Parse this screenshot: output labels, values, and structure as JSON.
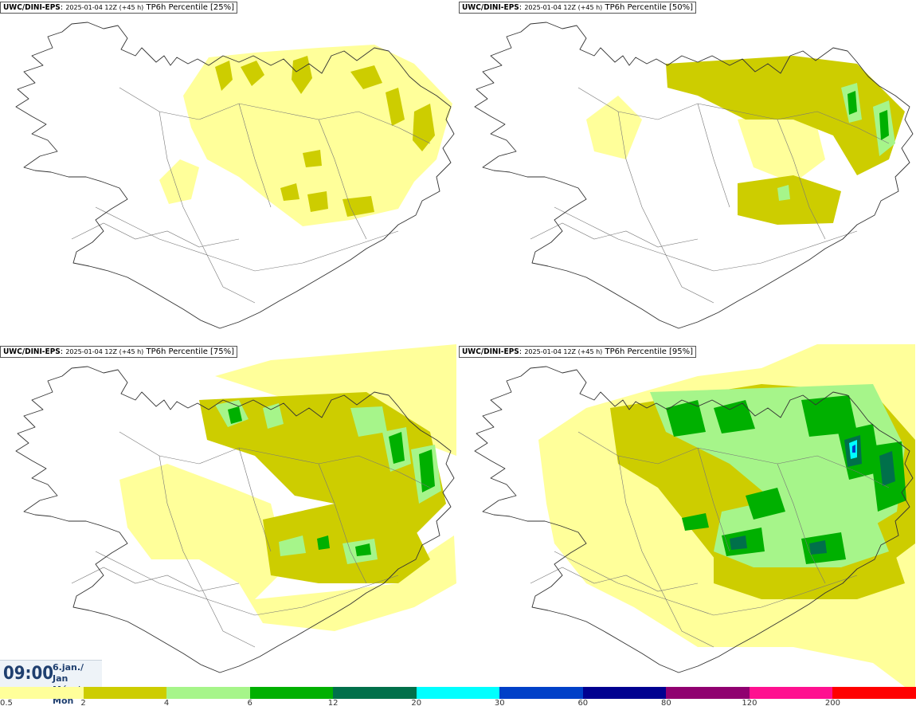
{
  "panels": [
    {
      "source": "UWC/DINI-EPS",
      "run": "2025-01-04 12Z (+45 h)",
      "field": "TP6h Percentile [25%]",
      "intensity": 0
    },
    {
      "source": "UWC/DINI-EPS",
      "run": "2025-01-04 12Z (+45 h)",
      "field": "TP6h Percentile [50%]",
      "intensity": 1
    },
    {
      "source": "UWC/DINI-EPS",
      "run": "2025-01-04 12Z (+45 h)",
      "field": "TP6h Percentile [75%]",
      "intensity": 2
    },
    {
      "source": "UWC/DINI-EPS",
      "run": "2025-01-04 12Z (+45 h)",
      "field": "TP6h Percentile [95%]",
      "intensity": 3
    }
  ],
  "valid_time": {
    "time": "09:00",
    "date_line": "6.jan./ Jan",
    "day_line": "Mán./ Mon"
  },
  "legend": {
    "ticks": [
      "0.5",
      "2",
      "4",
      "6",
      "12",
      "20",
      "30",
      "60",
      "80",
      "120",
      "200"
    ],
    "colors": [
      "#ffff9a",
      "#cdcd00",
      "#a6f58a",
      "#00b000",
      "#00704a",
      "#00ffff",
      "#0040c8",
      "#000090",
      "#900070",
      "#ff1090",
      "#ff0000"
    ]
  }
}
